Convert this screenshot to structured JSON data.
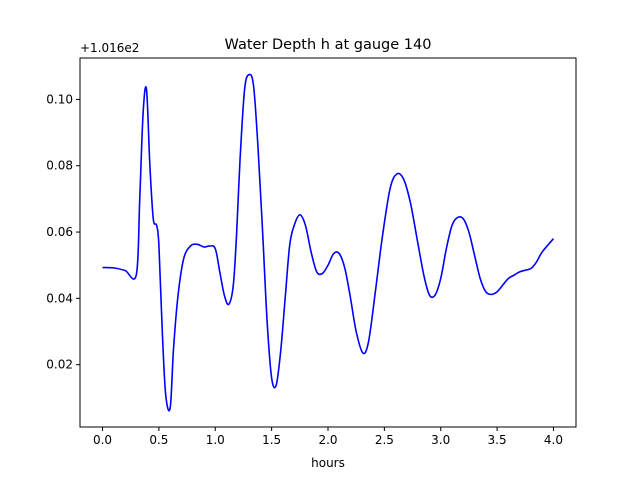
{
  "chart_data": {
    "type": "line",
    "title": "Water Depth h at gauge 140",
    "xlabel": "hours",
    "ylabel": "",
    "offset_label": "+1.016e2",
    "xlim": [
      -0.2,
      4.2
    ],
    "ylim": [
      0.0012,
      0.1125
    ],
    "xticks": [
      0.0,
      0.5,
      1.0,
      1.5,
      2.0,
      2.5,
      3.0,
      3.5,
      4.0
    ],
    "xtick_labels": [
      "0.0",
      "0.5",
      "1.0",
      "1.5",
      "2.0",
      "2.5",
      "3.0",
      "3.5",
      "4.0"
    ],
    "yticks": [
      0.02,
      0.04,
      0.06,
      0.08,
      0.1
    ],
    "ytick_labels": [
      "0.02",
      "0.04",
      "0.06",
      "0.08",
      "0.10"
    ],
    "grid": false,
    "series": [
      {
        "color": "#0000ff",
        "x": [
          0.0,
          0.1,
          0.2,
          0.3,
          0.33,
          0.36,
          0.39,
          0.42,
          0.45,
          0.48,
          0.5,
          0.53,
          0.56,
          0.6,
          0.63,
          0.67,
          0.72,
          0.78,
          0.84,
          0.9,
          0.95,
          1.0,
          1.04,
          1.08,
          1.12,
          1.16,
          1.19,
          1.22,
          1.26,
          1.3,
          1.34,
          1.38,
          1.42,
          1.46,
          1.5,
          1.54,
          1.58,
          1.62,
          1.66,
          1.7,
          1.75,
          1.8,
          1.85,
          1.9,
          1.95,
          2.0,
          2.05,
          2.1,
          2.15,
          2.2,
          2.25,
          2.31,
          2.36,
          2.42,
          2.48,
          2.55,
          2.61,
          2.67,
          2.73,
          2.79,
          2.85,
          2.9,
          2.95,
          3.0,
          3.05,
          3.1,
          3.15,
          3.2,
          3.25,
          3.3,
          3.35,
          3.4,
          3.45,
          3.5,
          3.55,
          3.6,
          3.65,
          3.7,
          3.75,
          3.8,
          3.85,
          3.9,
          4.0
        ],
        "y": [
          0.0493,
          0.0492,
          0.0484,
          0.0472,
          0.07,
          0.096,
          0.103,
          0.08,
          0.064,
          0.062,
          0.056,
          0.03,
          0.011,
          0.007,
          0.025,
          0.041,
          0.052,
          0.0558,
          0.0563,
          0.0555,
          0.0558,
          0.055,
          0.048,
          0.041,
          0.0382,
          0.044,
          0.06,
          0.082,
          0.103,
          0.1075,
          0.104,
          0.085,
          0.06,
          0.033,
          0.016,
          0.0138,
          0.024,
          0.04,
          0.056,
          0.062,
          0.0652,
          0.062,
          0.054,
          0.048,
          0.0475,
          0.05,
          0.0535,
          0.0535,
          0.049,
          0.04,
          0.03,
          0.0235,
          0.027,
          0.042,
          0.058,
          0.073,
          0.0775,
          0.076,
          0.069,
          0.058,
          0.047,
          0.041,
          0.041,
          0.046,
          0.055,
          0.062,
          0.0644,
          0.064,
          0.06,
          0.053,
          0.046,
          0.042,
          0.0412,
          0.042,
          0.044,
          0.046,
          0.047,
          0.048,
          0.0485,
          0.049,
          0.051,
          0.054,
          0.058
        ]
      }
    ]
  }
}
